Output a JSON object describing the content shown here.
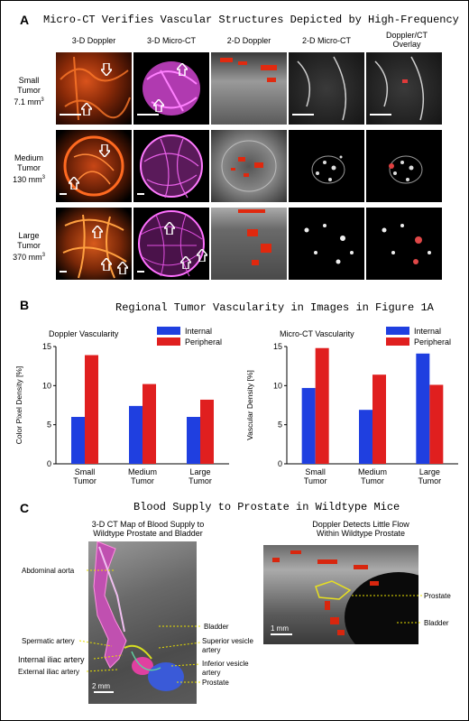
{
  "panel_a": {
    "letter": "A",
    "title": "Micro-CT Verifies Vascular Structures Depicted by High-Frequency",
    "column_headers": [
      "3-D Doppler",
      "3-D Micro-CT",
      "2-D Doppler",
      "2-D Micro-CT",
      "Doppler/CT\nOverlay"
    ],
    "rows": [
      {
        "name": "Small",
        "name2": "Tumor",
        "volume": "7.1 mm",
        "sup": "3"
      },
      {
        "name": "Medium",
        "name2": "Tumor",
        "volume": "130 mm",
        "sup": "3"
      },
      {
        "name": "Large",
        "name2": "Tumor",
        "volume": "370 mm",
        "sup": "3"
      }
    ],
    "colors": {
      "doppler": "#e0501a",
      "microct": "#d84fd8",
      "ultrasound": "#8a8a8a",
      "ct": "#222222"
    }
  },
  "panel_b": {
    "letter": "B",
    "title": "Regional Tumor Vascularity in Images in Figure 1A",
    "charts": [
      {
        "chart_data": {
          "type": "bar",
          "title": "Doppler Vascularity",
          "ylabel": "Color Pixel Density [%]",
          "xlabel": "",
          "categories": [
            "Small Tumor",
            "Medium Tumor",
            "Large Tumor"
          ],
          "series": [
            {
              "name": "Internal",
              "values": [
                6.0,
                7.4,
                6.0
              ],
              "color": "#1f3fe0"
            },
            {
              "name": "Peripheral",
              "values": [
                13.9,
                10.2,
                8.2
              ],
              "color": "#e01f1f"
            }
          ],
          "ylim": [
            0,
            15
          ],
          "yticks": [
            "0",
            "5",
            "10",
            "15"
          ],
          "legend": "top-right"
        }
      },
      {
        "chart_data": {
          "type": "bar",
          "title": "Micro-CT Vascularity",
          "ylabel": "Vascular Density [%]",
          "xlabel": "",
          "categories": [
            "Small Tumor",
            "Medium Tumor",
            "Large Tumor"
          ],
          "series": [
            {
              "name": "Internal",
              "values": [
                9.7,
                6.9,
                14.1
              ],
              "color": "#1f3fe0"
            },
            {
              "name": "Peripheral",
              "values": [
                14.8,
                11.4,
                10.1
              ],
              "color": "#e01f1f"
            }
          ],
          "ylim": [
            0,
            15
          ],
          "yticks": [
            "0",
            "5",
            "10",
            "15"
          ],
          "legend": "top-right"
        }
      }
    ]
  },
  "panel_c": {
    "letter": "C",
    "title": "Blood Supply to Prostate in Wildtype Mice",
    "left_caption": "3-D CT Map of Blood Supply to\nWildtype Prostate and Bladder",
    "right_caption": "Doppler Detects Little Flow\nWithin Wildtype Prostate",
    "left_labels": {
      "abdominal_aorta": "Abdominal aorta",
      "spermatic_artery": "Spermatic artery",
      "internal_iliac": "Internal iliac artery",
      "external_iliac": "External iliac artery",
      "bladder": "Bladder",
      "superior_vesicle": "Superior vesicle\nartery",
      "inferior_vesicle": "Inferior vesicle\nartery",
      "prostate": "Prostate",
      "scale": "2 mm"
    },
    "right_labels": {
      "prostate": "Prostate",
      "bladder": "Bladder",
      "scale": "1 mm"
    }
  }
}
